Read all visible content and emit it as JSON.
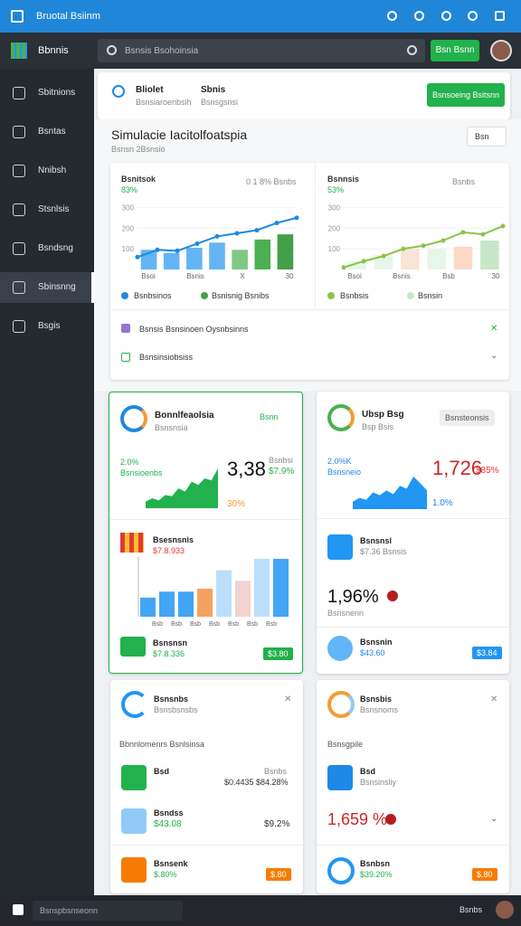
{
  "app": {
    "title": "Bruotal Bsiinm",
    "footer_left": "Bsnspbsnseonn",
    "footer_right": "Bsnbs"
  },
  "nav": {
    "brand": "Bbnnis",
    "search_placeholder": "Bsnsis Bsohoinsia",
    "button": "Bsn Bsnn"
  },
  "sidebar": {
    "items": [
      "Sbitnions",
      "Bsntas",
      "Nnibsh",
      "Stsnlsis",
      "Bsndsng",
      "Sbinsnng",
      "Bsgis"
    ]
  },
  "header": {
    "tab1_title": "Bliolet",
    "tab1_sub": "Bsnsiaroenbsih",
    "tab2_title": "Sbnis",
    "tab2_sub": "Bsnsgsnsi",
    "button": "Bsnsoeing Bsitsnn"
  },
  "page": {
    "title": "Simulacie Iacitolfoatspia",
    "subtitle": "Bsnsn 2Bsnsio",
    "dropdown": "Bsn"
  },
  "overview": {
    "charts": [
      {
        "title": "Bsnitsok",
        "value": "83%",
        "note": "0 1 8% Bsnbs",
        "legend1": "Bsnbsinos",
        "legend2": "Bsnisnig Bsnibs",
        "ylim": [
          0,
          350
        ],
        "yticks": [
          100,
          200,
          300
        ],
        "x_labels": [
          "Bsoi",
          "Bsnis",
          "X",
          "30"
        ],
        "bars": [
          95,
          80,
          105,
          130,
          95,
          145,
          170
        ],
        "bar_colors": [
          "#64b5f6",
          "#64b5f6",
          "#64b5f6",
          "#64b5f6",
          "#81c784",
          "#4caf50",
          "#43a047"
        ],
        "line": [
          60,
          95,
          90,
          125,
          160,
          175,
          190,
          225,
          250
        ],
        "line_color": "#1e88e5"
      },
      {
        "title": "Bsnnsis",
        "value": "53%",
        "note": "Bsnbs",
        "legend1": "Bsnbsis",
        "legend2": "Bsnsin",
        "ylim": [
          0,
          350
        ],
        "yticks": [
          100,
          200,
          300
        ],
        "x_labels": [
          "Bsoi",
          "Bsnis",
          "Bsb",
          "30"
        ],
        "bars": [
          40,
          70,
          100,
          100,
          110,
          140
        ],
        "bar_colors": [
          "#e8f5e9",
          "#e8f5e9",
          "#fbe3d6",
          "#e8f5e9",
          "#fcd9c4",
          "#c8e6c9"
        ],
        "line": [
          10,
          40,
          65,
          100,
          115,
          140,
          180,
          170,
          210
        ],
        "line_color": "#8bc34a"
      }
    ],
    "rows": [
      "Bsnsis Bsnsinoen Oysnbsinns",
      "Bsnsinsiobsiss"
    ]
  },
  "cards": {
    "a": {
      "title": "Bonnlfeaolsia",
      "sub": "Bsnsnsia",
      "action": "Bsnn",
      "stat": "2.0%",
      "stat_sub": "Bsnsioenbs",
      "big": "3,38",
      "delta": "$7.9%",
      "small": "30%",
      "mini": "Bsnbsi",
      "area": [
        10,
        15,
        12,
        20,
        18,
        30,
        25,
        40,
        35,
        45,
        42,
        60
      ],
      "color": "#22b14c"
    },
    "b": {
      "title": "Ubsp Bsg",
      "sub": "Bsp Bsis",
      "action": "Bsnsteonsis",
      "stat": "2.0%K",
      "stat_sub": "Bsnsneio",
      "big": "1,726",
      "delta": "$85%",
      "small": "1.0%",
      "area": [
        8,
        12,
        10,
        18,
        15,
        20,
        16,
        25,
        22,
        35,
        28,
        20
      ],
      "color": "#2196f3"
    },
    "c": {
      "title": "Bsesnsnis",
      "value": "$7.8.933",
      "footer_title": "Bsnsnsn",
      "footer_value": "$7.8.336",
      "badge": "$3.80",
      "x_labels": [
        "Bsb",
        "Bsb",
        "Bsb",
        "Bsb",
        "Bsb",
        "Bsb",
        "Bsb"
      ],
      "bars": [
        32,
        42,
        42,
        47,
        78,
        60,
        97,
        97
      ],
      "bar_colors": [
        "#42a5f5",
        "#42a5f5",
        "#42a5f5",
        "#f4a261",
        "#bbdefb",
        "#f1d3cf",
        "#bbdefb",
        "#42a5f5"
      ],
      "ylim": [
        0,
        100
      ]
    },
    "d": {
      "title": "Bsnsnsl",
      "sub": "$7.36 Bsnsis",
      "big": "1,96%",
      "big_sub": "Bsnsnenn",
      "footer_title": "Bsnsnin",
      "footer_value": "$43.60",
      "badge": "$3.84"
    },
    "e": {
      "title": "Bsnsnbs",
      "sub": "Bsnsbsnsbs",
      "row_title": "Bbnnlomenrs Bsnlsinsa",
      "items": [
        {
          "name": "Bsd",
          "value": "$0.4435 $84.28%",
          "top": "Bsnbs"
        },
        {
          "name": "Bsndss",
          "value": "$43.08",
          "right": "$9.2%"
        },
        {
          "name": "Bsnsenk",
          "value": "$.80%",
          "badge": "$.80"
        }
      ]
    },
    "f": {
      "title": "Bsnsbis",
      "sub": "Bsnsnoms",
      "row_title": "Bsnsgpile",
      "item_name": "Bsd",
      "item_sub": "Bsnsinsliy",
      "big": "1,659 %",
      "footer_title": "Bsnbsn",
      "footer_value": "$39.20%",
      "badge": "$.80"
    }
  }
}
